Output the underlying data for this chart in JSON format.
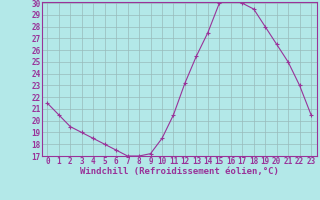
{
  "hours": [
    0,
    1,
    2,
    3,
    4,
    5,
    6,
    7,
    8,
    9,
    10,
    11,
    12,
    13,
    14,
    15,
    16,
    17,
    18,
    19,
    20,
    21,
    22,
    23
  ],
  "values": [
    21.5,
    20.5,
    19.5,
    19.0,
    18.5,
    18.0,
    17.5,
    17.0,
    17.0,
    17.2,
    18.5,
    20.5,
    23.2,
    25.5,
    27.5,
    30.0,
    30.3,
    30.0,
    29.5,
    28.0,
    26.5,
    25.0,
    23.0,
    20.5
  ],
  "line_color": "#993399",
  "marker": "+",
  "bg_color": "#b3e8e8",
  "grid_color": "#99bbbb",
  "xlabel": "Windchill (Refroidissement éolien,°C)",
  "ylim": [
    17,
    30
  ],
  "xlim": [
    -0.5,
    23.5
  ],
  "yticks": [
    17,
    18,
    19,
    20,
    21,
    22,
    23,
    24,
    25,
    26,
    27,
    28,
    29,
    30
  ],
  "xticks": [
    0,
    1,
    2,
    3,
    4,
    5,
    6,
    7,
    8,
    9,
    10,
    11,
    12,
    13,
    14,
    15,
    16,
    17,
    18,
    19,
    20,
    21,
    22,
    23
  ],
  "tick_fontsize": 5.5,
  "xlabel_fontsize": 6.5,
  "tick_color": "#993399",
  "label_color": "#993399",
  "spine_color": "#993399"
}
